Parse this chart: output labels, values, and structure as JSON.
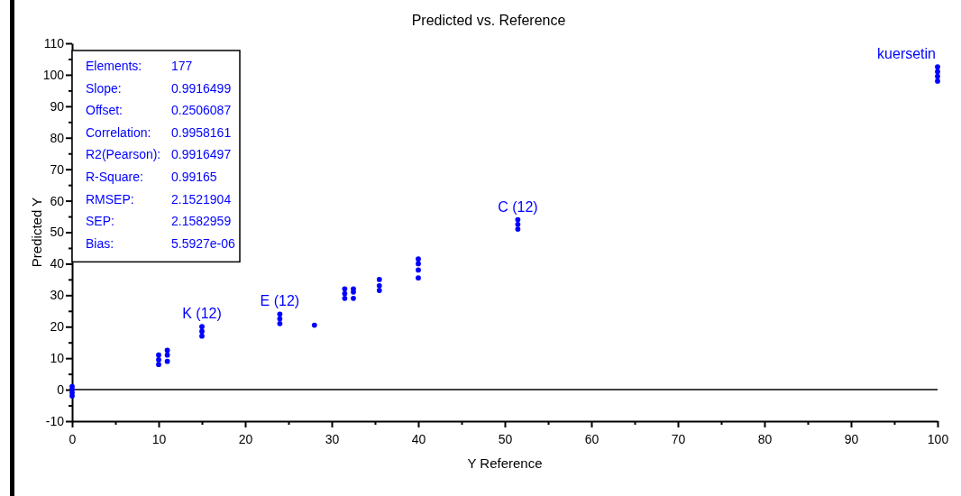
{
  "chart_data": {
    "type": "scatter",
    "title": "Predicted vs. Reference",
    "xlabel": "Y Reference",
    "ylabel": "Predicted Y",
    "xlim": [
      0,
      100
    ],
    "xticks": [
      0,
      {
        "value": 5,
        "label": null
      },
      10,
      {
        "value": 15,
        "label": null
      },
      20,
      {
        "value": 25,
        "label": null
      },
      30,
      {
        "value": 35,
        "label": null
      },
      40,
      {
        "value": 45,
        "label": null
      },
      50,
      {
        "value": 55,
        "label": null
      },
      60,
      {
        "value": 65,
        "label": null
      },
      70,
      {
        "value": 75,
        "label": null
      },
      80,
      {
        "value": 85,
        "label": null
      },
      90,
      {
        "value": 95,
        "label": null
      },
      100
    ],
    "ylim": [
      -10,
      110
    ],
    "yticks": [
      -10,
      {
        "value": -5,
        "label": null
      },
      0,
      {
        "value": 5,
        "label": null
      },
      10,
      {
        "value": 15,
        "label": null
      },
      20,
      {
        "value": 25,
        "label": null
      },
      30,
      {
        "value": 35,
        "label": null
      },
      40,
      {
        "value": 45,
        "label": null
      },
      50,
      {
        "value": 55,
        "label": null
      },
      60,
      {
        "value": 65,
        "label": null
      },
      70,
      {
        "value": 75,
        "label": null
      },
      80,
      {
        "value": 85,
        "label": null
      },
      90,
      {
        "value": 95,
        "label": null
      },
      100,
      {
        "value": 105,
        "label": null
      },
      110
    ],
    "marker": "circle",
    "series": [
      {
        "color": "#0000ff",
        "x": [
          0,
          0,
          0,
          0,
          10,
          10,
          10,
          11,
          11,
          11,
          15,
          15,
          15,
          24,
          24,
          24,
          28,
          31.5,
          31.5,
          31.5,
          32.5,
          32.5,
          32.5,
          35.5,
          35.5,
          35.5,
          40,
          40,
          40,
          40,
          51.5,
          51.5,
          51.5,
          100,
          100,
          100,
          100
        ],
        "values": [
          -2,
          -1,
          0,
          1,
          8,
          9.5,
          11,
          9,
          11,
          12.5,
          17,
          18.5,
          20,
          21,
          22.5,
          24,
          20.5,
          29,
          30.5,
          32,
          29,
          31,
          32,
          31.5,
          33,
          35,
          35.5,
          38,
          40,
          41.5,
          51,
          52.5,
          54,
          98,
          99.5,
          101,
          102.5
        ]
      }
    ],
    "ref_lines": [
      {
        "axis": "y",
        "value": 0,
        "color": "#000000"
      }
    ],
    "annotations": [
      "Elements:",
      "177",
      "Slope:",
      "0.9916499",
      "Offset:",
      "0.2506087",
      "Correlation:",
      "0.9958161",
      "R2(Pearson):",
      "0.9916497",
      "R-Square:",
      "0.99165",
      "RMSEP:",
      "2.1521904",
      "SEP:",
      "2.1582959",
      "Bias:",
      "5.5927e-06",
      {
        "text": "K (12)",
        "x": 15,
        "y": 20
      },
      {
        "text": "E (12)",
        "x": 24,
        "y": 24
      },
      {
        "text": "C (12)",
        "x": 51.5,
        "y": 54
      },
      {
        "text": "kuersetin",
        "x": 100,
        "y": 102.5
      }
    ]
  }
}
